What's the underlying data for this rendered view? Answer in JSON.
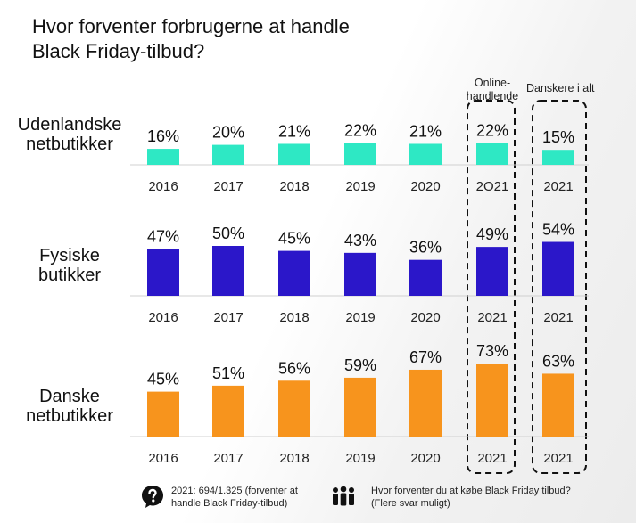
{
  "title": {
    "line1": "Hvor forventer forbrugerne at handle",
    "line2": "Black Friday-tilbud?"
  },
  "column_headers": {
    "online": [
      "Online-",
      "handlende"
    ],
    "total": "Danskere i alt"
  },
  "chart_data": {
    "type": "bar",
    "title": "Hvor forventer forbrugerne at handle Black Friday-tilbud?",
    "categories": [
      "2016",
      "2017",
      "2018",
      "2019",
      "2020",
      "2021",
      "2021"
    ],
    "category_groups": [
      "",
      "",
      "",
      "",
      "",
      "Online-handlende",
      "Danskere i alt"
    ],
    "unit": "%",
    "ylim": [
      0,
      100
    ],
    "series": [
      {
        "name": "Udenlandske netbutikker",
        "label_lines": [
          "Udenlandske",
          "netbutikker"
        ],
        "color": "#2EE8C4",
        "values": [
          16,
          20,
          21,
          22,
          21,
          22,
          15
        ],
        "value_labels": [
          "16%",
          "20%",
          "21%",
          "22%",
          "21%",
          "22%",
          "15%"
        ],
        "tick_labels": [
          "2016",
          "2017",
          "2018",
          "2019",
          "2020",
          "2O21",
          "2021"
        ]
      },
      {
        "name": "Fysiske butikker",
        "label_lines": [
          "Fysiske",
          "butikker"
        ],
        "color": "#2B17C9",
        "values": [
          47,
          50,
          45,
          43,
          36,
          49,
          54
        ],
        "value_labels": [
          "47%",
          "50%",
          "45%",
          "43%",
          "36%",
          "49%",
          "54%"
        ],
        "tick_labels": [
          "2016",
          "2017",
          "2018",
          "2019",
          "2020",
          "2021",
          "2021"
        ]
      },
      {
        "name": "Danske netbutikker",
        "label_lines": [
          "Danske",
          "netbutikker"
        ],
        "color": "#F7941D",
        "values": [
          45,
          51,
          56,
          59,
          67,
          73,
          63
        ],
        "value_labels": [
          "45%",
          "51%",
          "56%",
          "59%",
          "67%",
          "73%",
          "63%"
        ],
        "tick_labels": [
          "2016",
          "2017",
          "2018",
          "2019",
          "2020",
          "2021",
          "2021"
        ]
      }
    ]
  },
  "footer": {
    "note_icon": "question-bubble-icon",
    "note_lines": [
      "2021: 694/1.325 (forventer at",
      "handle Black Friday-tilbud)"
    ],
    "question_icon": "people-group-icon",
    "question_lines": [
      "Hvor forventer du at købe Black Friday tilbud?",
      "(Flere svar muligt)"
    ]
  }
}
